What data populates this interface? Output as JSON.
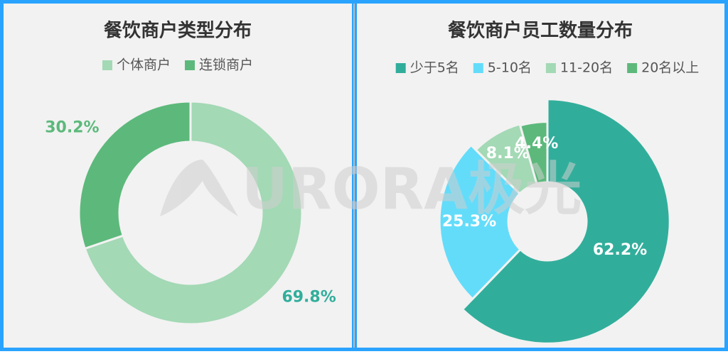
{
  "chart_data": [
    {
      "type": "pie",
      "title": "餐饮商户类型分布",
      "categories": [
        "个体商户",
        "连锁商户"
      ],
      "values": [
        69.8,
        30.2
      ],
      "value_labels": [
        "69.8%",
        "30.2%"
      ],
      "colors": [
        "#a3d9b5",
        "#5cb97b"
      ]
    },
    {
      "type": "pie",
      "title": "餐饮商户员工数量分布",
      "categories": [
        "少于5名",
        "5-10名",
        "11-20名",
        "20名以上"
      ],
      "values": [
        62.2,
        25.3,
        8.1,
        4.4
      ],
      "value_labels": [
        "62.2%",
        "25.3%",
        "8.1%",
        "4.4%"
      ],
      "colors": [
        "#31ae9b",
        "#63dcfa",
        "#a3d9b5",
        "#5cb97b"
      ]
    }
  ],
  "watermark": "URORA极光"
}
